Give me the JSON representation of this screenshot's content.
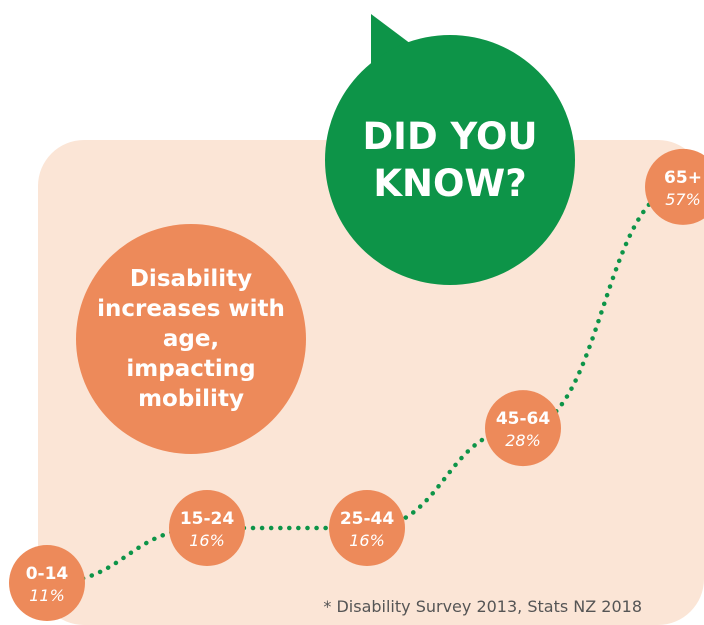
{
  "headline": "DID YOU KNOW?",
  "callout": "Disability increases with age, impacting mobility",
  "footnote": "* Disability Survey 2013, Stats NZ 2018",
  "colors": {
    "green": "#0d9448",
    "orange": "#ed8a5a",
    "panel": "#fbe5d6"
  },
  "chart_data": {
    "type": "line",
    "categories": [
      "0-14",
      "15-24",
      "25-44",
      "45-64",
      "65+"
    ],
    "values": [
      11,
      16,
      16,
      28,
      57
    ],
    "value_labels": [
      "11%",
      "16%",
      "16%",
      "28%",
      "57%"
    ],
    "unit": "%",
    "line_style": "dotted"
  }
}
